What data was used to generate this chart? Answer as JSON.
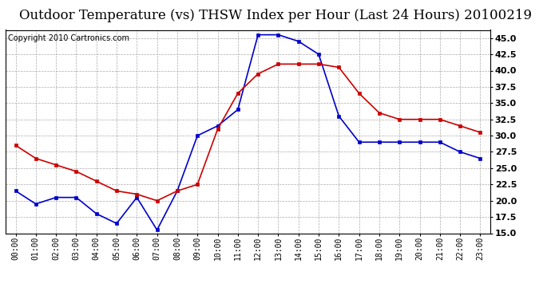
{
  "title": "Outdoor Temperature (vs) THSW Index per Hour (Last 24 Hours) 20100219",
  "copyright": "Copyright 2010 Cartronics.com",
  "hours": [
    "00:00",
    "01:00",
    "02:00",
    "03:00",
    "04:00",
    "05:00",
    "06:00",
    "07:00",
    "08:00",
    "09:00",
    "10:00",
    "11:00",
    "12:00",
    "13:00",
    "14:00",
    "15:00",
    "16:00",
    "17:00",
    "18:00",
    "19:00",
    "20:00",
    "21:00",
    "22:00",
    "23:00"
  ],
  "temp": [
    21.5,
    19.5,
    20.5,
    20.5,
    18.0,
    16.5,
    20.5,
    15.5,
    21.5,
    30.0,
    31.5,
    34.0,
    45.5,
    45.5,
    44.5,
    42.5,
    33.0,
    29.0,
    29.0,
    29.0,
    29.0,
    29.0,
    27.5,
    26.5
  ],
  "thsw": [
    28.5,
    26.5,
    25.5,
    24.5,
    23.0,
    21.5,
    21.0,
    20.0,
    21.5,
    22.5,
    31.0,
    36.5,
    39.5,
    41.0,
    41.0,
    41.0,
    40.5,
    36.5,
    33.5,
    32.5,
    32.5,
    32.5,
    31.5,
    30.5
  ],
  "temp_color": "#0000cc",
  "thsw_color": "#cc0000",
  "background_color": "#ffffff",
  "grid_color": "#aaaaaa",
  "ylim": [
    15.0,
    46.25
  ],
  "yticks": [
    15.0,
    17.5,
    20.0,
    22.5,
    25.0,
    27.5,
    30.0,
    32.5,
    35.0,
    37.5,
    40.0,
    42.5,
    45.0
  ],
  "title_fontsize": 12,
  "copyright_fontsize": 7,
  "marker": "s",
  "marker_size": 3,
  "line_width": 1.2
}
